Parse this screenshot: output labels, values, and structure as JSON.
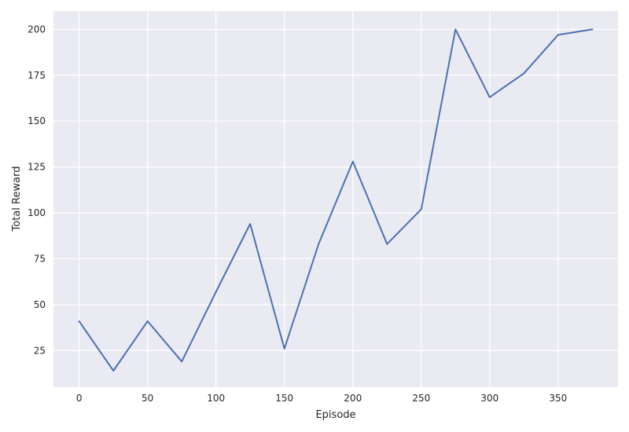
{
  "chart_data": {
    "type": "line",
    "title": "",
    "xlabel": "Episode",
    "ylabel": "Total Reward",
    "xlim": [
      -18.75,
      393.75
    ],
    "ylim": [
      5,
      210
    ],
    "xticks": [
      0,
      50,
      100,
      150,
      200,
      250,
      300,
      350
    ],
    "yticks": [
      25,
      50,
      75,
      100,
      125,
      150,
      175,
      200
    ],
    "grid": true,
    "colors": {
      "background": "#EAEAF2",
      "grid": "#FFFFFF",
      "line": "#4C72B0",
      "text": "#262626"
    },
    "series": [
      {
        "x": [
          0,
          25,
          50,
          75,
          100,
          125,
          150,
          175,
          200,
          225,
          250,
          275,
          300,
          325,
          350,
          375
        ],
        "y": [
          41,
          14,
          41,
          19,
          57,
          94,
          26,
          83,
          128,
          83,
          102,
          200,
          163,
          176,
          197,
          200
        ]
      }
    ]
  }
}
